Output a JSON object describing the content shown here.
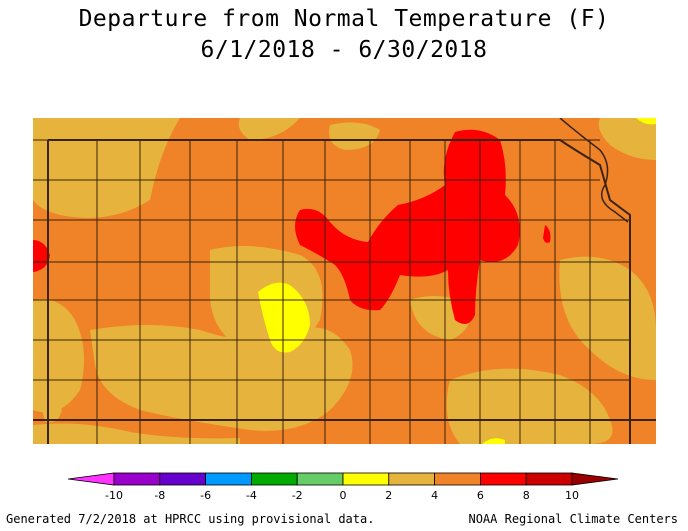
{
  "title": "Departure from Normal Temperature (F)",
  "date_range": "6/1/2018 - 6/30/2018",
  "legend": {
    "tick_labels": [
      "-10",
      "-8",
      "-6",
      "-4",
      "-2",
      "0",
      "2",
      "4",
      "6",
      "8",
      "10"
    ],
    "bins": [
      {
        "lo": -12,
        "hi": -10,
        "color": "#ff33ff"
      },
      {
        "lo": -10,
        "hi": -8,
        "color": "#9900cc"
      },
      {
        "lo": -8,
        "hi": -6,
        "color": "#6600cc"
      },
      {
        "lo": -6,
        "hi": -4,
        "color": "#0099ff"
      },
      {
        "lo": -4,
        "hi": -2,
        "color": "#00aa00"
      },
      {
        "lo": -2,
        "hi": 0,
        "color": "#66cc66"
      },
      {
        "lo": 0,
        "hi": 2,
        "color": "#ffff00"
      },
      {
        "lo": 2,
        "hi": 4,
        "color": "#e6b43c"
      },
      {
        "lo": 4,
        "hi": 6,
        "color": "#f08228"
      },
      {
        "lo": 6,
        "hi": 8,
        "color": "#ff0000"
      },
      {
        "lo": 8,
        "hi": 10,
        "color": "#cc0000"
      },
      {
        "lo": 10,
        "hi": 12,
        "color": "#990000"
      }
    ]
  },
  "colors": {
    "base_4_to_6": "#f08228",
    "band_2_to_4": "#e6b43c",
    "band_6_to_8": "#ff0000",
    "band_0_to_2": "#ffff00",
    "county_lines": "#3a2410"
  },
  "footer": {
    "left": "Generated 7/2/2018 at HPRCC using provisional data.",
    "right": "NOAA Regional Climate Centers"
  }
}
